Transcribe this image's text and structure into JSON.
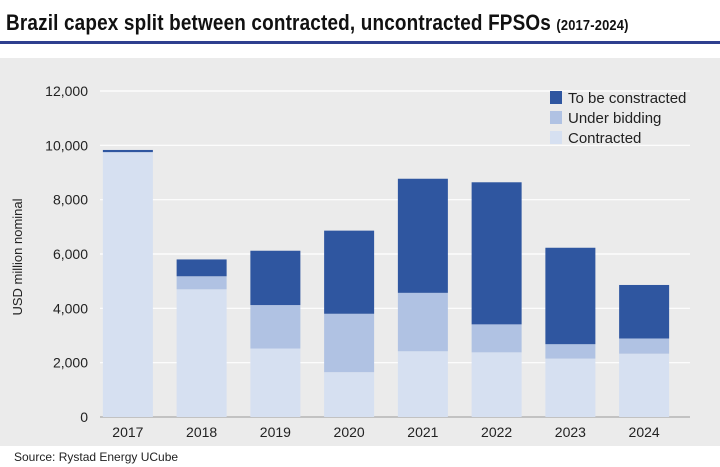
{
  "header": {
    "title_main": "Brazil capex split between contracted, uncontracted FPSOs",
    "title_years": "(2017-2024)"
  },
  "footer": {
    "source": "Source: Rystad Energy UCube"
  },
  "chart_data": {
    "type": "bar",
    "stacked": true,
    "title": "Brazil capex split between contracted, uncontracted FPSOs (2017-2024)",
    "xlabel": "",
    "ylabel": "USD million nominal",
    "ylim": [
      0,
      12000
    ],
    "yticks": [
      0,
      2000,
      4000,
      6000,
      8000,
      10000,
      12000
    ],
    "ytick_labels": [
      "0",
      "2,000",
      "4,000",
      "6,000",
      "8,000",
      "10,000",
      "12,000"
    ],
    "grid": true,
    "legend_position": "top-right",
    "categories": [
      "2017",
      "2018",
      "2019",
      "2020",
      "2021",
      "2022",
      "2023",
      "2024"
    ],
    "series": [
      {
        "name": "Contracted",
        "color": "#d6e0f1",
        "values": [
          9750,
          4700,
          2520,
          1650,
          2420,
          2380,
          2150,
          2330
        ]
      },
      {
        "name": "Under bidding",
        "color": "#b0c2e3",
        "values": [
          0,
          480,
          1600,
          2150,
          2150,
          1030,
          530,
          560
        ]
      },
      {
        "name": "To be constracted",
        "color": "#2f56a0",
        "values": [
          80,
          620,
          2000,
          3060,
          4200,
          5230,
          3550,
          1970
        ]
      }
    ]
  }
}
